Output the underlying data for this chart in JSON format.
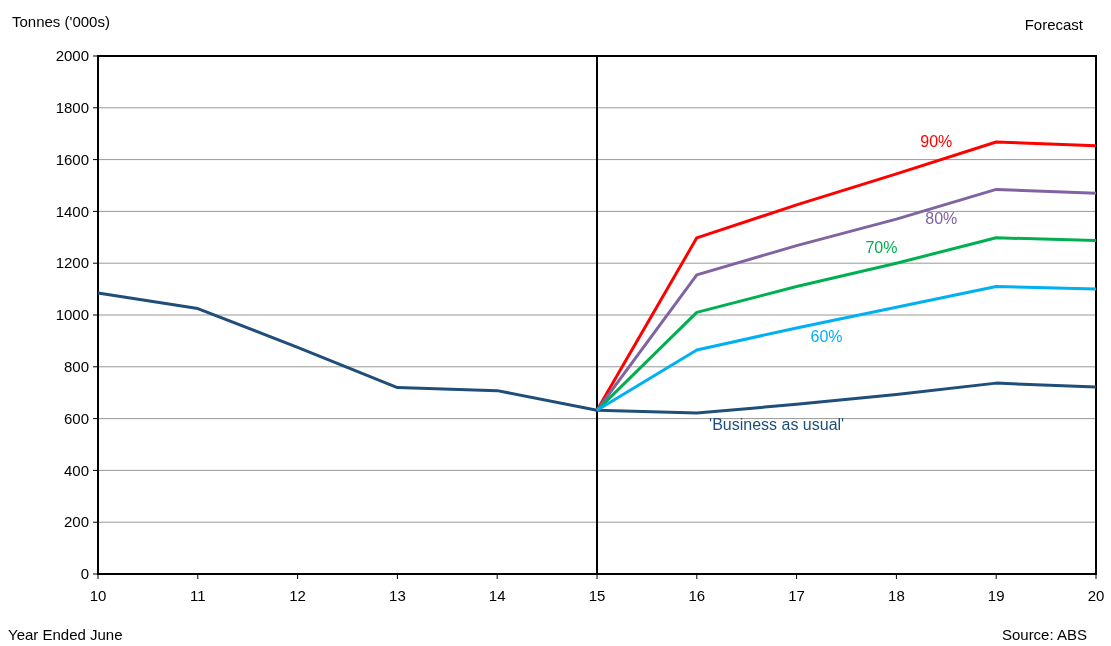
{
  "chart_data": {
    "type": "line",
    "ylabel": "Tonnes ('000s)",
    "xlabel": "Year Ended June",
    "annotations": [
      "Forecast",
      "Source: ABS"
    ],
    "x": [
      10,
      11,
      12,
      13,
      14,
      15,
      16,
      17,
      18,
      19,
      20
    ],
    "series": [
      {
        "name": "'Business as usual'",
        "color": "#1f4e79",
        "values": [
          1085,
          1025,
          875,
          720,
          708,
          632,
          622,
          655,
          693,
          737,
          722
        ]
      },
      {
        "name": "90%",
        "color": "#ff0000",
        "x": [
          15,
          16,
          17,
          18,
          19,
          20
        ],
        "values": [
          632,
          1298,
          1425,
          1545,
          1668,
          1653
        ]
      },
      {
        "name": "80%",
        "color": "#8064a2",
        "x": [
          15,
          16,
          17,
          18,
          19,
          20
        ],
        "values": [
          632,
          1155,
          1268,
          1370,
          1485,
          1470
        ]
      },
      {
        "name": "70%",
        "color": "#00b050",
        "x": [
          15,
          16,
          17,
          18,
          19,
          20
        ],
        "values": [
          632,
          1010,
          1110,
          1200,
          1298,
          1288
        ]
      },
      {
        "name": "60%",
        "color": "#00b0f0",
        "x": [
          15,
          16,
          17,
          18,
          19,
          20
        ],
        "values": [
          632,
          865,
          950,
          1030,
          1110,
          1100
        ]
      }
    ],
    "xlim": [
      10,
      20
    ],
    "xticks": [
      10,
      11,
      12,
      13,
      14,
      15,
      16,
      17,
      18,
      19,
      20
    ],
    "ylim": [
      0,
      2000
    ],
    "yticks": [
      0,
      200,
      400,
      600,
      800,
      1000,
      1200,
      1400,
      1600,
      1800,
      2000
    ],
    "grid": "y",
    "marker": "none",
    "line_style": "solid",
    "ref_lines": [
      {
        "axis": "x",
        "value": 15,
        "color": "#000000"
      }
    ]
  }
}
